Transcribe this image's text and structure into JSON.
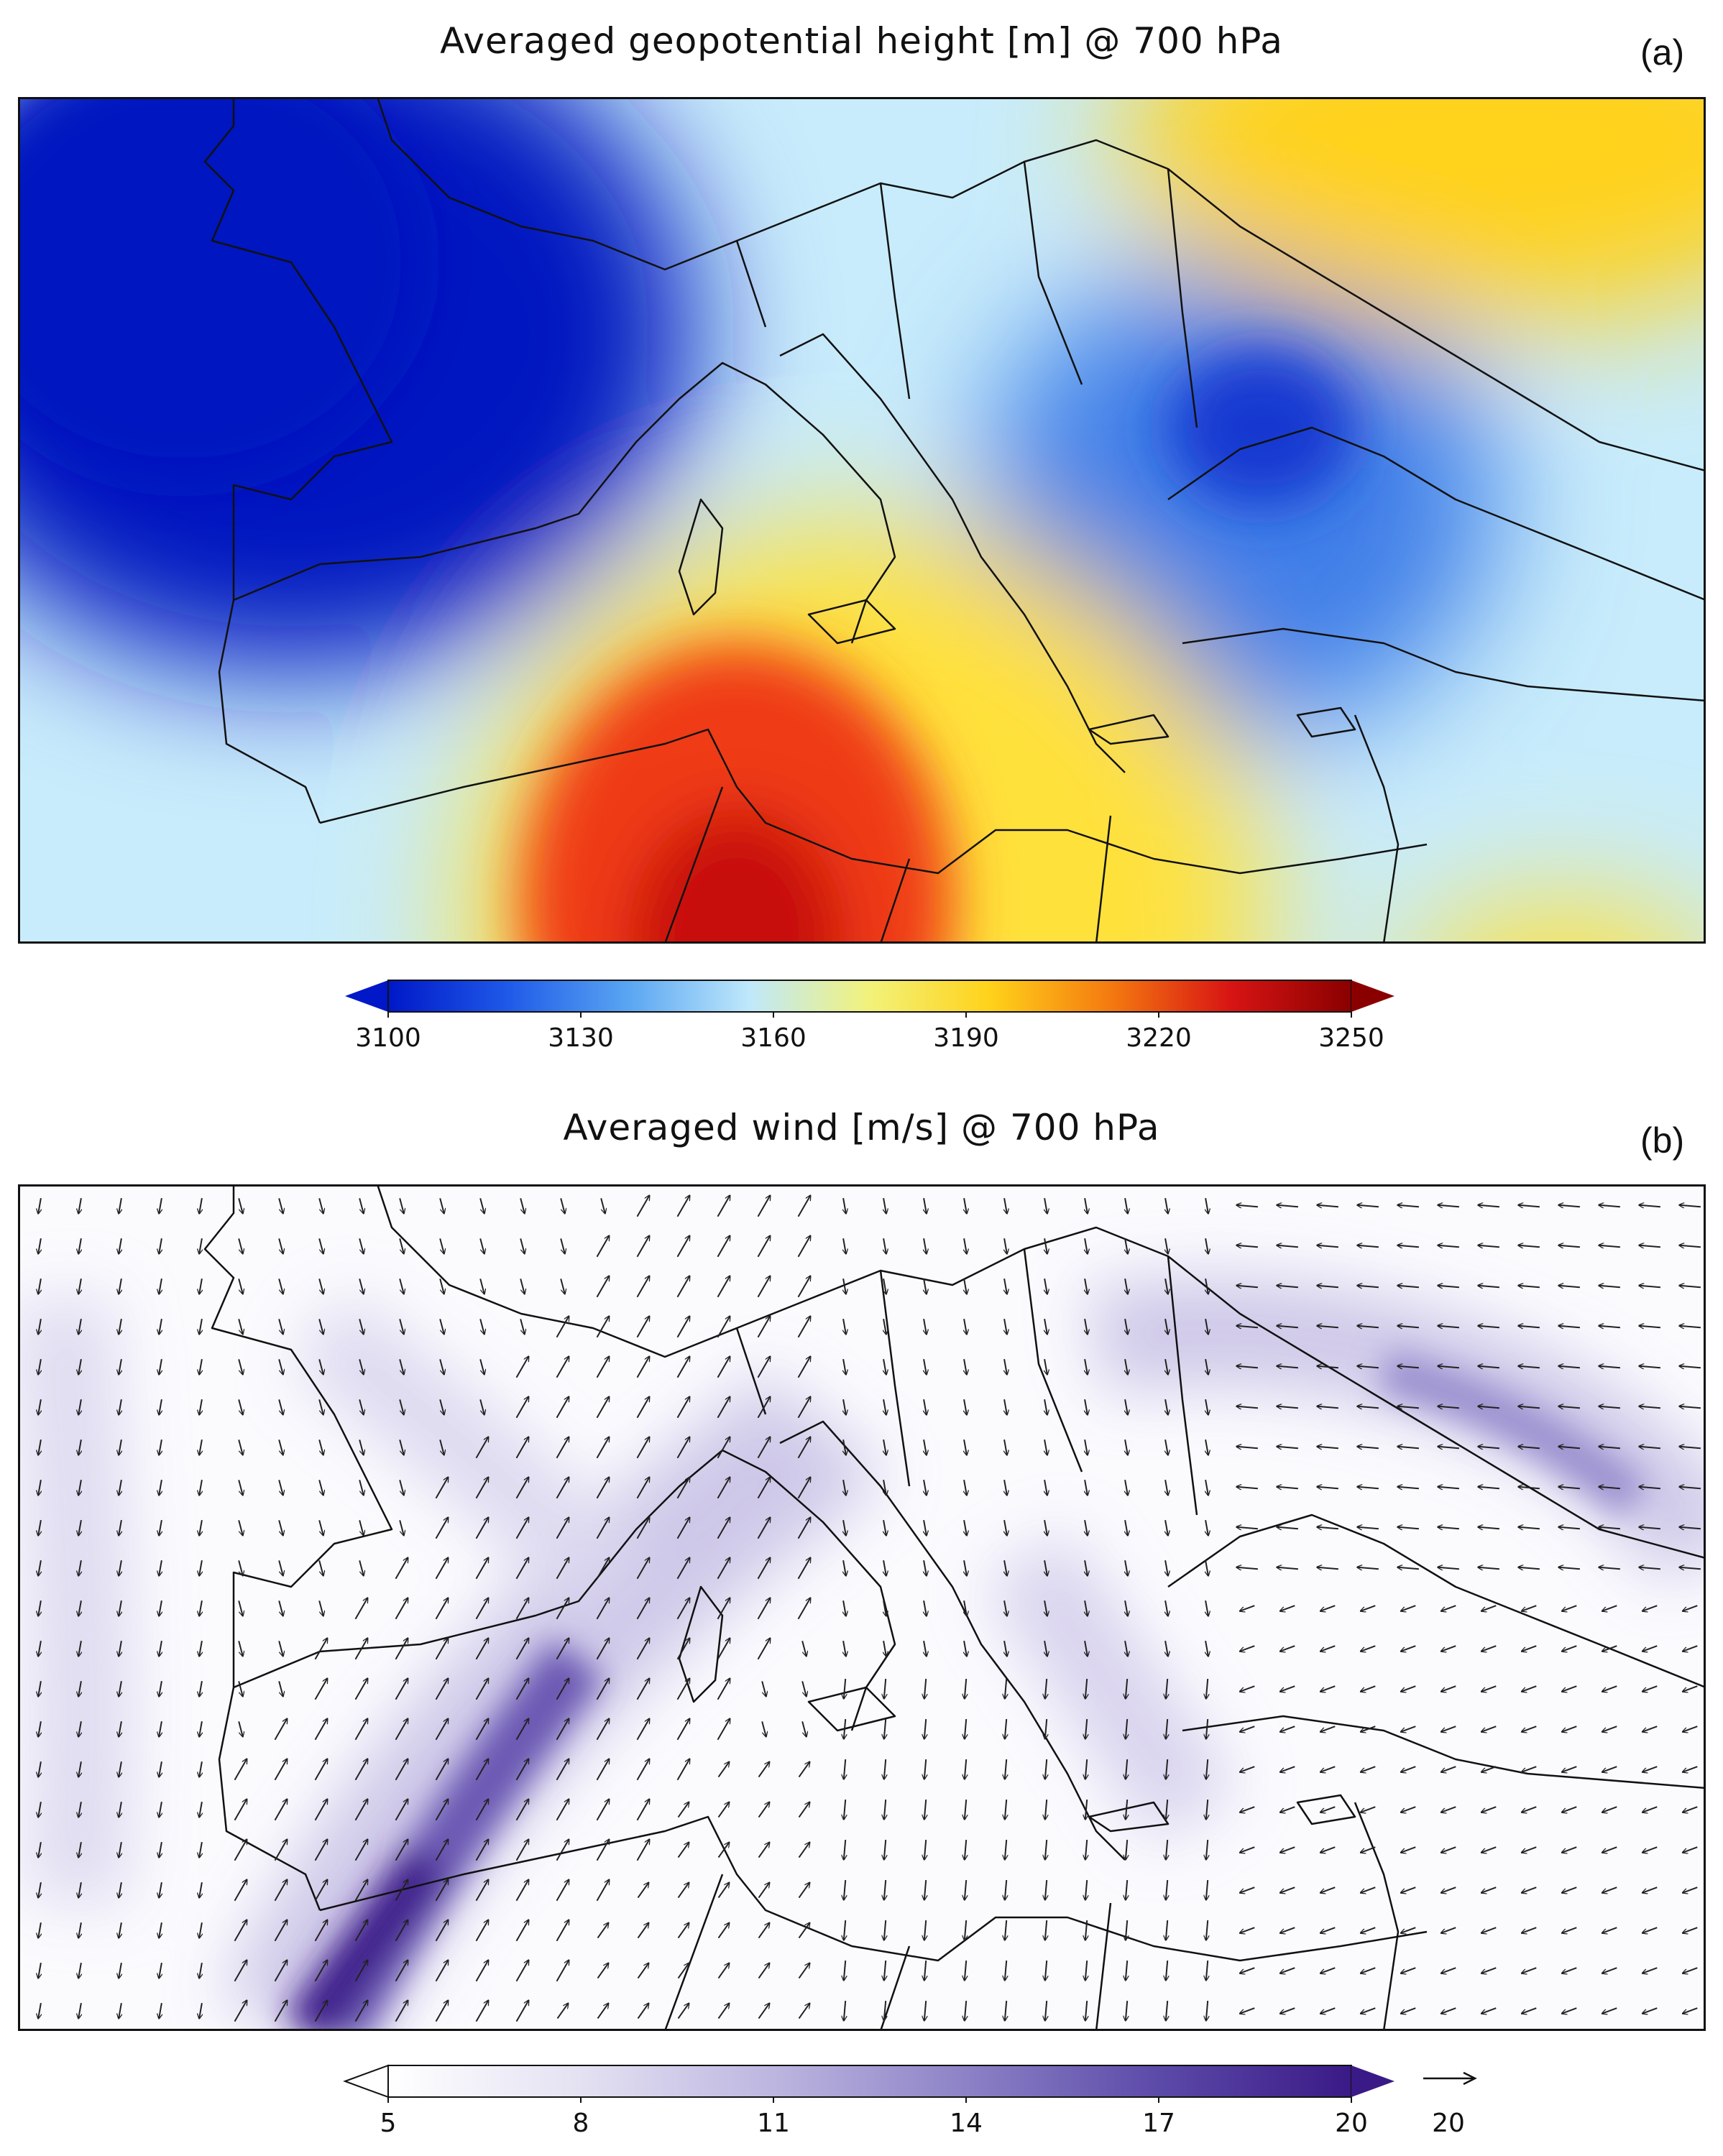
{
  "panels": [
    {
      "id": "a",
      "title": "Averaged geopotential height [m] @ 700 hPa",
      "label": "(a)",
      "colorbar": {
        "ticks": [
          "3100",
          "3130",
          "3160",
          "3190",
          "3220",
          "3250"
        ],
        "min": 3100,
        "max": 3250,
        "extend": "both",
        "colors": [
          "#0018c8",
          "#1f5ae8",
          "#5aa6f2",
          "#bfe8fb",
          "#f2f27a",
          "#ffd21a",
          "#f47a10",
          "#d81414",
          "#8a0000"
        ]
      },
      "field_colors": {
        "low": "#0016c0",
        "mid_low": "#3f7fe8",
        "neutral": "#c8ecfb",
        "mid_high": "#ffe13a",
        "high": "#ef3a12",
        "peak": "#c80a0a"
      }
    },
    {
      "id": "b",
      "title": "Averaged wind [m/s] @ 700 hPa",
      "label": "(b)",
      "colorbar": {
        "ticks": [
          "5",
          "8",
          "11",
          "14",
          "17",
          "20"
        ],
        "min": 5,
        "max": 20,
        "extend": "both",
        "colors": [
          "#ffffff",
          "#e4e1f2",
          "#bcb6e0",
          "#8c82c6",
          "#5c4aa8",
          "#3a1a86"
        ]
      },
      "reference_vector": "20",
      "field_colors": {
        "calm": "#fbfbfe",
        "moderate": "#c9c3e6",
        "strong": "#6a58b3",
        "max": "#3c1f8a"
      }
    }
  ]
}
